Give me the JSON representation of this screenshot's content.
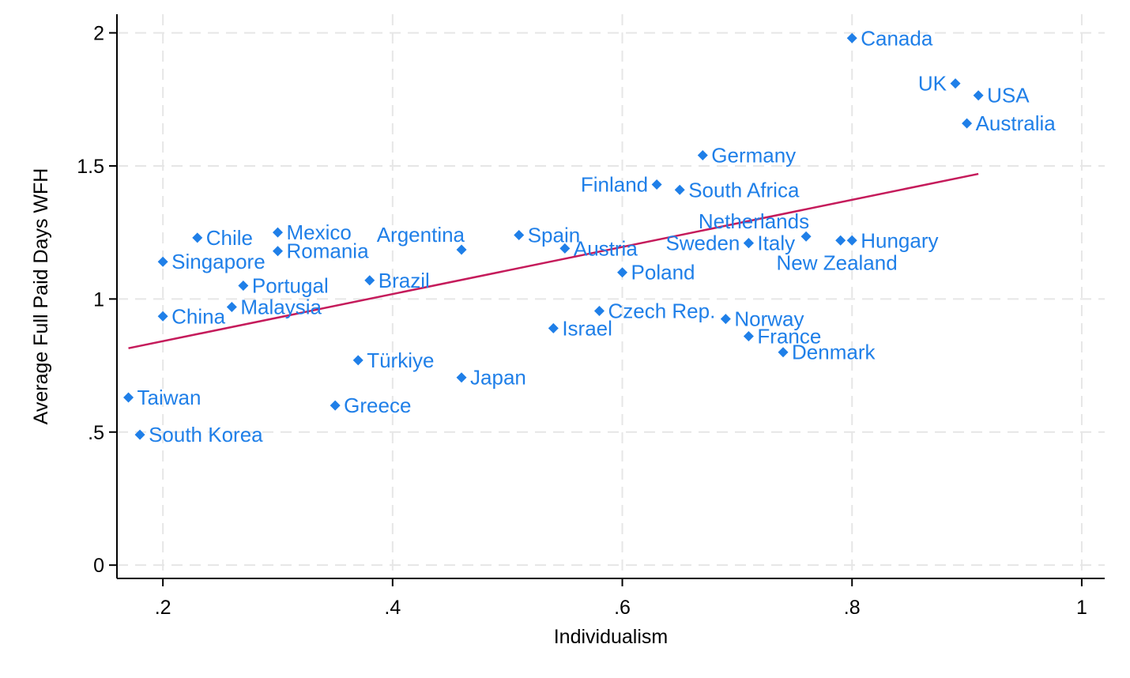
{
  "chart_data": {
    "type": "scatter",
    "xlabel": "Individualism",
    "ylabel": "Average Full Paid Days WFH",
    "xlim": [
      0.16,
      1.02
    ],
    "ylim": [
      -0.05,
      2.07
    ],
    "x_ticks": [
      {
        "value": 0.2,
        "label": ".2"
      },
      {
        "value": 0.4,
        "label": ".4"
      },
      {
        "value": 0.6,
        "label": ".6"
      },
      {
        "value": 0.8,
        "label": ".8"
      },
      {
        "value": 1.0,
        "label": "1"
      }
    ],
    "y_ticks": [
      {
        "value": 0,
        "label": "0"
      },
      {
        "value": 0.5,
        "label": ".5"
      },
      {
        "value": 1,
        "label": "1"
      },
      {
        "value": 1.5,
        "label": "1.5"
      },
      {
        "value": 2,
        "label": "2"
      }
    ],
    "grid": true,
    "marker_color": "#1f7fe8",
    "line_color": "#c51b5b",
    "fit_line": {
      "x": [
        0.17,
        0.91
      ],
      "y": [
        0.815,
        1.47
      ]
    },
    "points": [
      {
        "label": "Canada",
        "x": 0.8,
        "y": 1.98,
        "pos": "right"
      },
      {
        "label": "UK",
        "x": 0.89,
        "y": 1.81,
        "pos": "left"
      },
      {
        "label": "USA",
        "x": 0.91,
        "y": 1.765,
        "pos": "right"
      },
      {
        "label": "Australia",
        "x": 0.9,
        "y": 1.66,
        "pos": "right"
      },
      {
        "label": "Germany",
        "x": 0.67,
        "y": 1.54,
        "pos": "right"
      },
      {
        "label": "Finland",
        "x": 0.63,
        "y": 1.43,
        "pos": "left"
      },
      {
        "label": "South Africa",
        "x": 0.65,
        "y": 1.41,
        "pos": "right"
      },
      {
        "label": "Netherlands",
        "x": 0.76,
        "y": 1.235,
        "pos": "above-left"
      },
      {
        "label": "Hungary",
        "x": 0.8,
        "y": 1.22,
        "pos": "right"
      },
      {
        "label": "New Zealand",
        "x": 0.79,
        "y": 1.22,
        "pos": "below-left"
      },
      {
        "label": "Italy",
        "x": 0.71,
        "y": 1.21,
        "pos": "right"
      },
      {
        "label": "Sweden",
        "x": 0.71,
        "y": 1.21,
        "pos": "left"
      },
      {
        "label": "Argentina",
        "x": 0.46,
        "y": 1.185,
        "pos": "above-left"
      },
      {
        "label": "Spain",
        "x": 0.51,
        "y": 1.24,
        "pos": "right"
      },
      {
        "label": "Austria",
        "x": 0.55,
        "y": 1.19,
        "pos": "right"
      },
      {
        "label": "Poland",
        "x": 0.6,
        "y": 1.1,
        "pos": "right"
      },
      {
        "label": "Chile",
        "x": 0.23,
        "y": 1.23,
        "pos": "right"
      },
      {
        "label": "Mexico",
        "x": 0.3,
        "y": 1.25,
        "pos": "right"
      },
      {
        "label": "Romania",
        "x": 0.3,
        "y": 1.18,
        "pos": "right"
      },
      {
        "label": "Singapore",
        "x": 0.2,
        "y": 1.14,
        "pos": "right"
      },
      {
        "label": "Portugal",
        "x": 0.27,
        "y": 1.05,
        "pos": "right"
      },
      {
        "label": "Brazil",
        "x": 0.38,
        "y": 1.07,
        "pos": "right"
      },
      {
        "label": "Malaysia",
        "x": 0.26,
        "y": 0.97,
        "pos": "right"
      },
      {
        "label": "China",
        "x": 0.2,
        "y": 0.935,
        "pos": "right"
      },
      {
        "label": "Czech Rep.",
        "x": 0.58,
        "y": 0.955,
        "pos": "right"
      },
      {
        "label": "Israel",
        "x": 0.54,
        "y": 0.89,
        "pos": "right"
      },
      {
        "label": "Norway",
        "x": 0.69,
        "y": 0.925,
        "pos": "right"
      },
      {
        "label": "France",
        "x": 0.71,
        "y": 0.86,
        "pos": "right"
      },
      {
        "label": "Denmark",
        "x": 0.74,
        "y": 0.8,
        "pos": "right"
      },
      {
        "label": "Türkiye",
        "x": 0.37,
        "y": 0.77,
        "pos": "right"
      },
      {
        "label": "Japan",
        "x": 0.46,
        "y": 0.705,
        "pos": "right"
      },
      {
        "label": "Taiwan",
        "x": 0.17,
        "y": 0.63,
        "pos": "right"
      },
      {
        "label": "Greece",
        "x": 0.35,
        "y": 0.6,
        "pos": "right"
      },
      {
        "label": "South Korea",
        "x": 0.18,
        "y": 0.49,
        "pos": "right"
      }
    ]
  }
}
